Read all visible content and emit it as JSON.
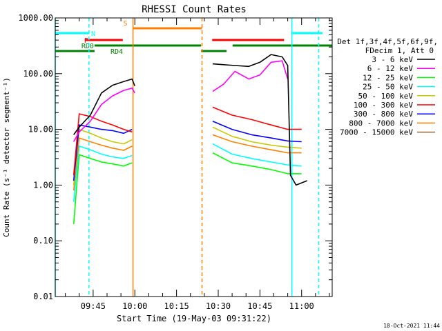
{
  "chart_data": {
    "type": "line",
    "title": "RHESSI Count Rates",
    "xlabel": "Start Time (19-May-03 09:31:22)",
    "ylabel": "Count Rate (s⁻¹ detector segment⁻¹)",
    "yscale": "log",
    "ylim": [
      0.01,
      1000
    ],
    "xlim": [
      "09:31:22",
      "11:11:00"
    ],
    "x_ticks": [
      "09:45",
      "10:00",
      "10:15",
      "10:30",
      "10:45",
      "11:00"
    ],
    "y_ticks": [
      "0.01",
      "0.10",
      "1.00",
      "10.00",
      "100.00",
      "1000.00"
    ],
    "legend_header": [
      "Det 1f,3f,4f,5f,6f,9f,",
      "FDecim 1, Att 0"
    ],
    "legend_position": "right",
    "footer": "18-Oct-2021 11:44",
    "grid": false,
    "series": [
      {
        "name": "3 - 6 keV",
        "color": "#000000",
        "x": [
          "09:38",
          "09:40",
          "09:44",
          "09:48",
          "09:52",
          "09:56",
          "09:59",
          "10:00",
          "10:23",
          "10:28",
          "10:32",
          "10:36",
          "10:41",
          "10:45",
          "10:49",
          "10:53",
          "10:55",
          "10:56",
          "10:58",
          "11:02"
        ],
        "y": [
          8,
          11,
          18,
          45,
          62,
          72,
          80,
          60,
          null,
          150,
          145,
          140,
          135,
          160,
          220,
          200,
          140,
          1.5,
          1.0,
          1.2
        ]
      },
      {
        "name": "6 - 12 keV",
        "color": "#ff00ff",
        "x": [
          "09:38",
          "09:40",
          "09:44",
          "09:48",
          "09:52",
          "09:56",
          "09:59",
          "10:00",
          "10:23",
          "10:28",
          "10:32",
          "10:36",
          "10:41",
          "10:45",
          "10:49",
          "10:53",
          "10:55"
        ],
        "y": [
          6,
          9,
          14,
          28,
          40,
          50,
          55,
          45,
          null,
          48,
          65,
          110,
          80,
          95,
          160,
          170,
          80
        ]
      },
      {
        "name": "12 - 25 keV",
        "color": "#00ff00",
        "x": [
          "09:38",
          "09:40",
          "09:44",
          "09:48",
          "09:52",
          "09:56",
          "09:59",
          "10:23",
          "10:28",
          "10:35",
          "10:42",
          "10:49",
          "10:55",
          "11:00"
        ],
        "y": [
          0.2,
          3.5,
          3.0,
          2.6,
          2.4,
          2.2,
          2.5,
          null,
          3.8,
          2.5,
          2.2,
          1.9,
          1.6,
          1.6
        ]
      },
      {
        "name": "25 - 50 keV",
        "color": "#00ffff",
        "x": [
          "09:38",
          "09:40",
          "09:44",
          "09:48",
          "09:52",
          "09:56",
          "09:59",
          "10:23",
          "10:28",
          "10:35",
          "10:42",
          "10:49",
          "10:55",
          "11:00"
        ],
        "y": [
          0.5,
          5.0,
          4.3,
          3.6,
          3.2,
          3.0,
          3.4,
          null,
          5.5,
          3.6,
          3.0,
          2.6,
          2.3,
          2.2
        ]
      },
      {
        "name": "50 - 100 keV",
        "color": "#c8c800",
        "x": [
          "09:38",
          "09:40",
          "09:44",
          "09:48",
          "09:52",
          "09:56",
          "09:59",
          "10:23",
          "10:28",
          "10:35",
          "10:42",
          "10:49",
          "10:55",
          "11:00"
        ],
        "y": [
          1.0,
          10,
          8.5,
          7.0,
          6.0,
          5.5,
          6.5,
          null,
          11,
          7.5,
          6.0,
          5.2,
          4.8,
          4.6
        ]
      },
      {
        "name": "100 - 300 keV",
        "color": "#ff0000",
        "x": [
          "09:38",
          "09:40",
          "09:44",
          "09:48",
          "09:52",
          "09:56",
          "09:59",
          "10:23",
          "10:28",
          "10:35",
          "10:42",
          "10:49",
          "10:55",
          "11:00"
        ],
        "y": [
          1.5,
          19,
          17,
          14,
          12,
          10,
          9,
          null,
          25,
          18,
          15,
          12,
          10,
          10
        ]
      },
      {
        "name": "300 - 800 keV",
        "color": "#0000ff",
        "x": [
          "09:38",
          "09:40",
          "09:44",
          "09:48",
          "09:52",
          "09:56",
          "09:59",
          "10:23",
          "10:28",
          "10:35",
          "10:42",
          "10:49",
          "10:55",
          "11:00"
        ],
        "y": [
          1.2,
          12,
          11,
          10,
          9.5,
          8.5,
          10,
          null,
          14,
          10,
          8,
          7,
          6.2,
          6.0
        ]
      },
      {
        "name": "800 - 7000 keV",
        "color": "#ff8000",
        "x": [
          "09:38",
          "09:40",
          "09:44",
          "09:48",
          "09:52",
          "09:56",
          "09:59",
          "10:23",
          "10:28",
          "10:35",
          "10:42",
          "10:49",
          "10:55",
          "11:00"
        ],
        "y": [
          0.8,
          7,
          6.0,
          5.2,
          4.6,
          4.2,
          5.0,
          null,
          8,
          6,
          5,
          4.3,
          3.8,
          3.8
        ]
      },
      {
        "name": "7000 - 15000 keV",
        "color": "#996633",
        "x": [],
        "y": []
      }
    ],
    "annotations": {
      "vlines": [
        {
          "x": "09:31:22",
          "color": "#00ffff",
          "style": "solid"
        },
        {
          "x": "09:43:30",
          "color": "#00ffff",
          "style": "dashed"
        },
        {
          "x": "09:59:20",
          "color": "#ff8000",
          "style": "solid"
        },
        {
          "x": "10:24:10",
          "color": "#ff8000",
          "style": "dashed"
        },
        {
          "x": "10:56:30",
          "color": "#00ffff",
          "style": "solid"
        },
        {
          "x": "11:06:10",
          "color": "#00ffff",
          "style": "dashed"
        }
      ],
      "bars": [
        {
          "label": "N",
          "color": "#00ffff",
          "row": 1,
          "segments": [
            [
              "09:31:22",
              "09:43:30"
            ],
            [
              "10:56:30",
              "11:07:30"
            ]
          ]
        },
        {
          "label": "S",
          "color": "#ff8000",
          "row": 0,
          "segments": [
            [
              "09:59:20",
              "10:24:10"
            ]
          ]
        },
        {
          "label": "F",
          "color": "#ff0000",
          "row": 2,
          "segments": [
            [
              "09:42:00",
              "09:55:40"
            ],
            [
              "10:27:50",
              "10:53:40"
            ]
          ]
        },
        {
          "label": "RD0",
          "color": "#008000",
          "row": 3,
          "segments": [
            [
              "09:45:30",
              "10:23:50"
            ],
            [
              "10:35:10",
              "11:11:00"
            ]
          ]
        },
        {
          "label": "RD4",
          "color": "#008000",
          "row": 4,
          "segments": [
            [
              "09:31:22",
              "09:45:30"
            ],
            [
              "10:23:50",
              "10:33:00"
            ]
          ]
        }
      ]
    }
  }
}
